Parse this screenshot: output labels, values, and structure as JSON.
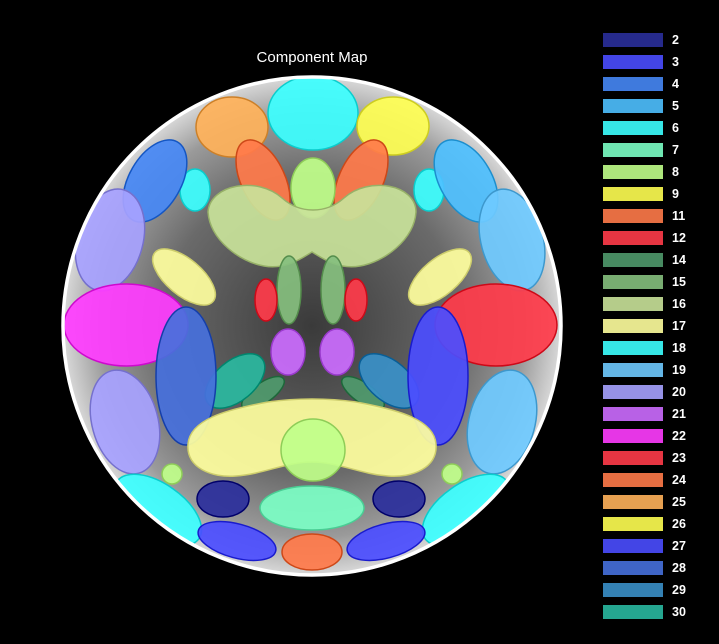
{
  "title": "Component Map",
  "legend": [
    {
      "id": "2",
      "label": "2",
      "color": "#2b2f9c"
    },
    {
      "id": "3",
      "label": "3",
      "color": "#4b4dff"
    },
    {
      "id": "4",
      "label": "4",
      "color": "#4688f5"
    },
    {
      "id": "5",
      "label": "5",
      "color": "#4ec0ff"
    },
    {
      "id": "6",
      "label": "6",
      "color": "#3cffff"
    },
    {
      "id": "7",
      "label": "7",
      "color": "#7cffc6"
    },
    {
      "id": "8",
      "label": "8",
      "color": "#c0ff8a"
    },
    {
      "id": "9",
      "label": "9",
      "color": "#ffff52"
    },
    {
      "id": "11",
      "label": "11",
      "color": "#ff7a4a"
    },
    {
      "id": "12",
      "label": "12",
      "color": "#ff3b4a"
    },
    {
      "id": "14",
      "label": "14",
      "color": "#4f9a6c"
    },
    {
      "id": "15",
      "label": "15",
      "color": "#86bf7e"
    },
    {
      "id": "16",
      "label": "16",
      "color": "#c9e39a"
    },
    {
      "id": "17",
      "label": "17",
      "color": "#ffff9e"
    },
    {
      "id": "18",
      "label": "18",
      "color": "#3cffff"
    },
    {
      "id": "19",
      "label": "19",
      "color": "#6fcaff"
    },
    {
      "id": "20",
      "label": "20",
      "color": "#a7a2ff"
    },
    {
      "id": "21",
      "label": "21",
      "color": "#cc6cff"
    },
    {
      "id": "22",
      "label": "22",
      "color": "#ff3cff"
    },
    {
      "id": "23",
      "label": "23",
      "color": "#ff3b4a"
    },
    {
      "id": "24",
      "label": "24",
      "color": "#ff7a4a"
    },
    {
      "id": "25",
      "label": "25",
      "color": "#ffb25a"
    },
    {
      "id": "26",
      "label": "26",
      "color": "#ffff52"
    },
    {
      "id": "27",
      "label": "27",
      "color": "#4b4dff"
    },
    {
      "id": "28",
      "label": "28",
      "color": "#4670dc"
    },
    {
      "id": "29",
      "label": "29",
      "color": "#3a90c8"
    },
    {
      "id": "30",
      "label": "30",
      "color": "#2ab8a0"
    }
  ]
}
